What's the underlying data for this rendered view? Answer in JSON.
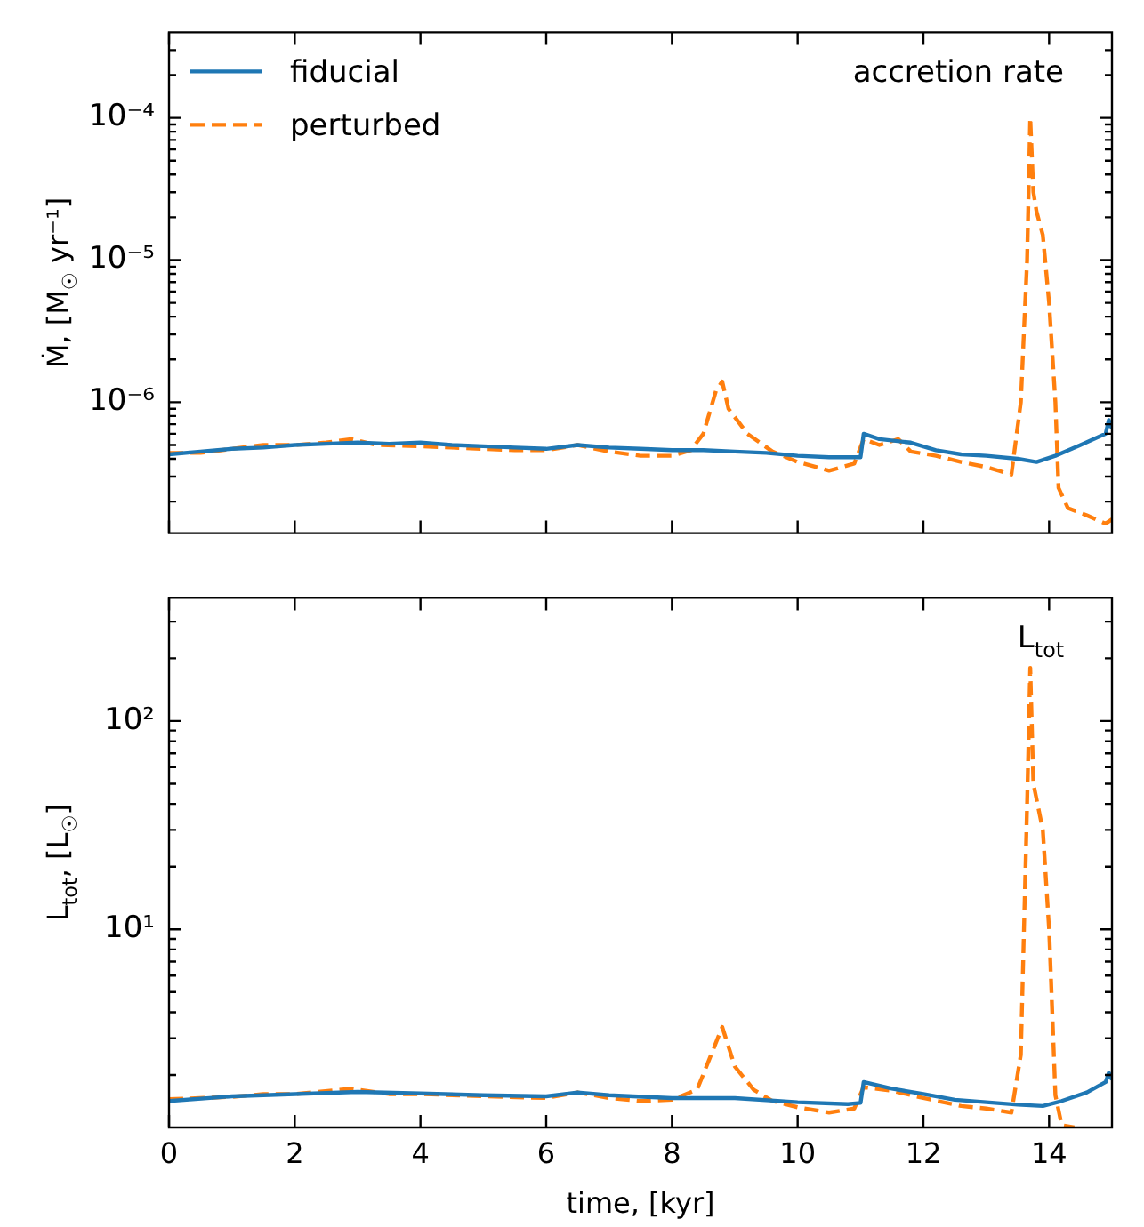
{
  "chart_data": [
    {
      "type": "line",
      "ylabel": "Ṁ, [M$_{☉}$ yr⁻¹]",
      "annotations": [
        "accretion rate"
      ],
      "log": "y",
      "legend": "top left",
      "tick_labels": "y",
      "xlim": [
        0,
        15
      ],
      "xticks": [
        {
          "value": 0,
          "label": null
        },
        {
          "value": 2,
          "label": null
        },
        {
          "value": 4,
          "label": null
        },
        {
          "value": 6,
          "label": null
        },
        {
          "value": 8,
          "label": null
        },
        {
          "value": 10,
          "label": null
        },
        {
          "value": 12,
          "label": null
        },
        {
          "value": 14,
          "label": null
        }
      ],
      "ylim": [
        1.2e-07,
        0.0004
      ],
      "yticks": [
        {
          "value": 2e-07,
          "label": null
        },
        {
          "value": 3e-07,
          "label": null
        },
        {
          "value": 4e-07,
          "label": null
        },
        {
          "value": 5e-07,
          "label": null
        },
        {
          "value": 6e-07,
          "label": null
        },
        {
          "value": 7e-07,
          "label": null
        },
        {
          "value": 8e-07,
          "label": null
        },
        {
          "value": 9e-07,
          "label": null
        },
        {
          "value": 1e-06,
          "label": "10⁻⁶"
        },
        {
          "value": 2e-06,
          "label": null
        },
        {
          "value": 3e-06,
          "label": null
        },
        {
          "value": 4e-06,
          "label": null
        },
        {
          "value": 5e-06,
          "label": null
        },
        {
          "value": 6e-06,
          "label": null
        },
        {
          "value": 7e-06,
          "label": null
        },
        {
          "value": 8e-06,
          "label": null
        },
        {
          "value": 9e-06,
          "label": null
        },
        {
          "value": 1e-05,
          "label": "10⁻⁵"
        },
        {
          "value": 2e-05,
          "label": null
        },
        {
          "value": 3e-05,
          "label": null
        },
        {
          "value": 4e-05,
          "label": null
        },
        {
          "value": 5e-05,
          "label": null
        },
        {
          "value": 6e-05,
          "label": null
        },
        {
          "value": 7e-05,
          "label": null
        },
        {
          "value": 8e-05,
          "label": null
        },
        {
          "value": 9e-05,
          "label": null
        },
        {
          "value": 0.0001,
          "label": "10⁻⁴"
        },
        {
          "value": 0.0002,
          "label": null
        },
        {
          "value": 0.0003,
          "label": null
        }
      ],
      "series": [
        {
          "name": "fiducial",
          "color": "#1f77b4",
          "line_style": "solid",
          "x": [
            0,
            0.5,
            1,
            1.5,
            2,
            2.5,
            3,
            3.5,
            4,
            4.5,
            5,
            5.5,
            6,
            6.5,
            7,
            7.5,
            8,
            8.5,
            9,
            9.5,
            10,
            10.5,
            11,
            11.05,
            11.3,
            11.8,
            12.2,
            12.6,
            13,
            13.5,
            13.8,
            14.1,
            14.5,
            14.9,
            14.95,
            15
          ],
          "values": [
            4.3e-07,
            4.5e-07,
            4.7e-07,
            4.8e-07,
            5e-07,
            5.1e-07,
            5.2e-07,
            5.1e-07,
            5.2e-07,
            5e-07,
            4.9e-07,
            4.8e-07,
            4.7e-07,
            5e-07,
            4.8e-07,
            4.7e-07,
            4.6e-07,
            4.6e-07,
            4.5e-07,
            4.4e-07,
            4.2e-07,
            4.1e-07,
            4.1e-07,
            6e-07,
            5.5e-07,
            5.2e-07,
            4.6e-07,
            4.3e-07,
            4.2e-07,
            4e-07,
            3.8e-07,
            4.2e-07,
            5e-07,
            6e-07,
            7.5e-07,
            6.5e-07
          ]
        },
        {
          "name": "perturbed",
          "color": "#ff7f0e",
          "line_style": "dashed",
          "x": [
            0,
            0.5,
            1,
            1.5,
            2,
            2.5,
            2.9,
            3.3,
            4,
            4.5,
            5,
            5.5,
            6,
            6.5,
            7,
            7.5,
            8,
            8.3,
            8.5,
            8.7,
            8.8,
            8.9,
            9.2,
            9.6,
            10,
            10.5,
            10.9,
            11.05,
            11.3,
            11.6,
            11.8,
            12.2,
            12.6,
            13,
            13.4,
            13.55,
            13.65,
            13.7,
            13.75,
            13.8,
            13.9,
            14.0,
            14.1,
            14.15,
            14.3,
            14.6,
            14.9,
            15
          ],
          "values": [
            4.4e-07,
            4.4e-07,
            4.7e-07,
            5e-07,
            5e-07,
            5.2e-07,
            5.5e-07,
            5e-07,
            4.9e-07,
            4.8e-07,
            4.7e-07,
            4.6e-07,
            4.6e-07,
            5e-07,
            4.5e-07,
            4.2e-07,
            4.2e-07,
            4.6e-07,
            6e-07,
            1.2e-06,
            1.4e-06,
            9e-07,
            6e-07,
            4.5e-07,
            3.8e-07,
            3.3e-07,
            3.7e-07,
            5.5e-07,
            5e-07,
            5.5e-07,
            4.5e-07,
            4.2e-07,
            3.8e-07,
            3.5e-07,
            3.1e-07,
            1e-06,
            1e-05,
            0.0001,
            3e-05,
            2.2e-05,
            1.5e-05,
            5e-06,
            1e-06,
            2.5e-07,
            1.8e-07,
            1.6e-07,
            1.4e-07,
            1.5e-07
          ]
        }
      ]
    },
    {
      "type": "line",
      "xlabel": "time, [kyr]",
      "ylabel": "L$_{tot}$, [L$_{☉}$]",
      "annotations": [
        "L$_{tot}$"
      ],
      "log": "y",
      "xlim": [
        0,
        15
      ],
      "xticks": [
        0,
        2,
        4,
        6,
        8,
        10,
        12,
        14
      ],
      "ylim": [
        1.12,
        390
      ],
      "yticks": [
        {
          "value": 2,
          "label": null
        },
        {
          "value": 3,
          "label": null
        },
        {
          "value": 4,
          "label": null
        },
        {
          "value": 5,
          "label": null
        },
        {
          "value": 6,
          "label": null
        },
        {
          "value": 7,
          "label": null
        },
        {
          "value": 8,
          "label": null
        },
        {
          "value": 9,
          "label": null
        },
        {
          "value": 10,
          "label": "10¹"
        },
        {
          "value": 20,
          "label": null
        },
        {
          "value": 30,
          "label": null
        },
        {
          "value": 40,
          "label": null
        },
        {
          "value": 50,
          "label": null
        },
        {
          "value": 60,
          "label": null
        },
        {
          "value": 70,
          "label": null
        },
        {
          "value": 80,
          "label": null
        },
        {
          "value": 90,
          "label": null
        },
        {
          "value": 100,
          "label": "10²"
        },
        {
          "value": 200,
          "label": null
        },
        {
          "value": 300,
          "label": null
        }
      ],
      "series": [
        {
          "color": "#1f77b4",
          "line_style": "solid",
          "x": [
            0,
            1,
            2,
            3,
            4,
            5,
            6,
            6.5,
            7,
            8,
            9,
            10,
            10.8,
            11,
            11.05,
            11.5,
            12,
            12.5,
            13,
            13.5,
            13.9,
            14.2,
            14.6,
            14.9,
            14.95,
            15
          ],
          "values": [
            1.5,
            1.58,
            1.62,
            1.66,
            1.63,
            1.6,
            1.58,
            1.65,
            1.6,
            1.55,
            1.55,
            1.48,
            1.45,
            1.47,
            1.85,
            1.72,
            1.62,
            1.52,
            1.48,
            1.44,
            1.42,
            1.5,
            1.65,
            1.85,
            2.05,
            1.9
          ]
        },
        {
          "color": "#ff7f0e",
          "line_style": "dashed",
          "x": [
            0,
            1,
            1.5,
            2,
            2.9,
            3.5,
            4,
            5,
            6,
            6.5,
            7,
            7.5,
            8,
            8.4,
            8.6,
            8.8,
            9,
            9.3,
            9.6,
            10,
            10.5,
            10.9,
            11.05,
            11.5,
            12,
            12.6,
            13,
            13.4,
            13.55,
            13.65,
            13.7,
            13.75,
            13.9,
            14.0,
            14.1,
            14.2,
            14.4
          ],
          "values": [
            1.53,
            1.57,
            1.62,
            1.62,
            1.72,
            1.62,
            1.62,
            1.58,
            1.55,
            1.65,
            1.55,
            1.5,
            1.52,
            1.7,
            2.4,
            3.4,
            2.2,
            1.7,
            1.5,
            1.4,
            1.32,
            1.38,
            1.75,
            1.68,
            1.55,
            1.42,
            1.38,
            1.32,
            2.5,
            40,
            180,
            50,
            30,
            10,
            1.6,
            1.15,
            1.12
          ]
        }
      ]
    }
  ]
}
